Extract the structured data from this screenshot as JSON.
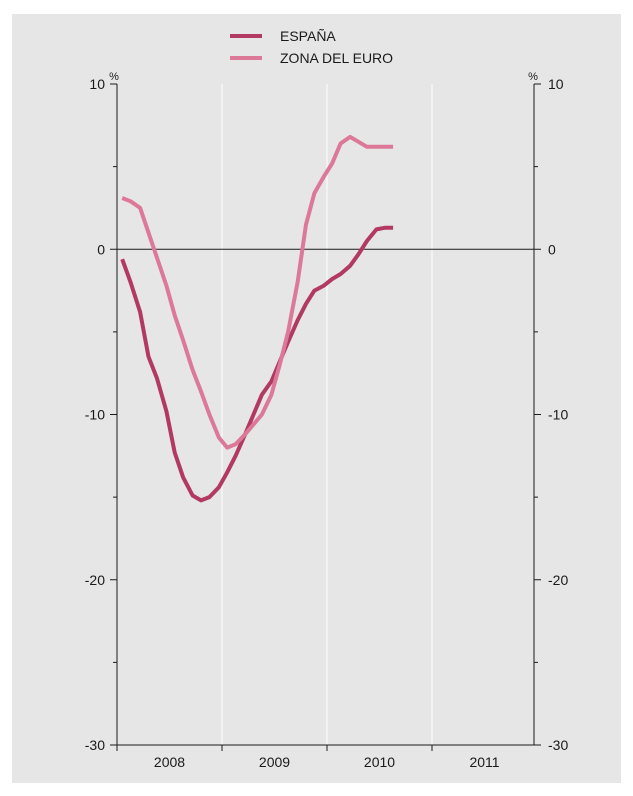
{
  "chart_data": {
    "type": "line",
    "title": "",
    "xlabel": "",
    "ylabel": "",
    "y_unit_left": "%",
    "y_unit_right": "%",
    "ylim": [
      -30,
      10
    ],
    "y_ticks": [
      10,
      0,
      -10,
      -20,
      -30
    ],
    "y_tick_labels": [
      "10",
      "0",
      "-10",
      "-20",
      "-30"
    ],
    "x_categories": [
      "2008",
      "2009",
      "2010",
      "2011"
    ],
    "grid": "vertical",
    "legend_position": "top-center",
    "zero_line": true,
    "series": [
      {
        "name": "ESPAÑA",
        "color": "#b23a62",
        "x": [
          2008.0,
          2008.08,
          2008.17,
          2008.25,
          2008.33,
          2008.42,
          2008.5,
          2008.58,
          2008.67,
          2008.75,
          2008.83,
          2008.92,
          2009.0,
          2009.08,
          2009.17,
          2009.25,
          2009.33,
          2009.42,
          2009.5,
          2009.58,
          2009.67,
          2009.75,
          2009.83,
          2009.92,
          2010.0,
          2010.08,
          2010.17,
          2010.25,
          2010.33,
          2010.42,
          2010.5,
          2010.58
        ],
        "values": [
          -0.6,
          -2.0,
          -3.8,
          -6.5,
          -7.8,
          -9.8,
          -12.3,
          -13.8,
          -14.9,
          -15.2,
          -15.0,
          -14.4,
          -13.5,
          -12.5,
          -11.2,
          -10.0,
          -8.8,
          -8.0,
          -6.8,
          -5.6,
          -4.3,
          -3.3,
          -2.5,
          -2.2,
          -1.8,
          -1.5,
          -1.0,
          -0.3,
          0.5,
          1.2,
          1.3,
          1.3
        ]
      },
      {
        "name": "ZONA DEL EURO",
        "color": "#dc7898",
        "x": [
          2008.0,
          2008.08,
          2008.17,
          2008.25,
          2008.33,
          2008.42,
          2008.5,
          2008.58,
          2008.67,
          2008.75,
          2008.83,
          2008.92,
          2009.0,
          2009.08,
          2009.17,
          2009.25,
          2009.33,
          2009.42,
          2009.5,
          2009.58,
          2009.67,
          2009.75,
          2009.83,
          2009.92,
          2010.0,
          2010.08,
          2010.17,
          2010.25,
          2010.33,
          2010.42,
          2010.5,
          2010.58
        ],
        "values": [
          3.1,
          2.9,
          2.5,
          1.0,
          -0.5,
          -2.2,
          -4.0,
          -5.5,
          -7.3,
          -8.6,
          -10.0,
          -11.4,
          -12.0,
          -11.8,
          -11.2,
          -10.6,
          -10.0,
          -8.8,
          -7.0,
          -5.0,
          -2.0,
          1.5,
          3.4,
          4.4,
          5.2,
          6.4,
          6.8,
          6.5,
          6.2,
          6.2,
          6.2,
          6.2
        ]
      }
    ]
  }
}
